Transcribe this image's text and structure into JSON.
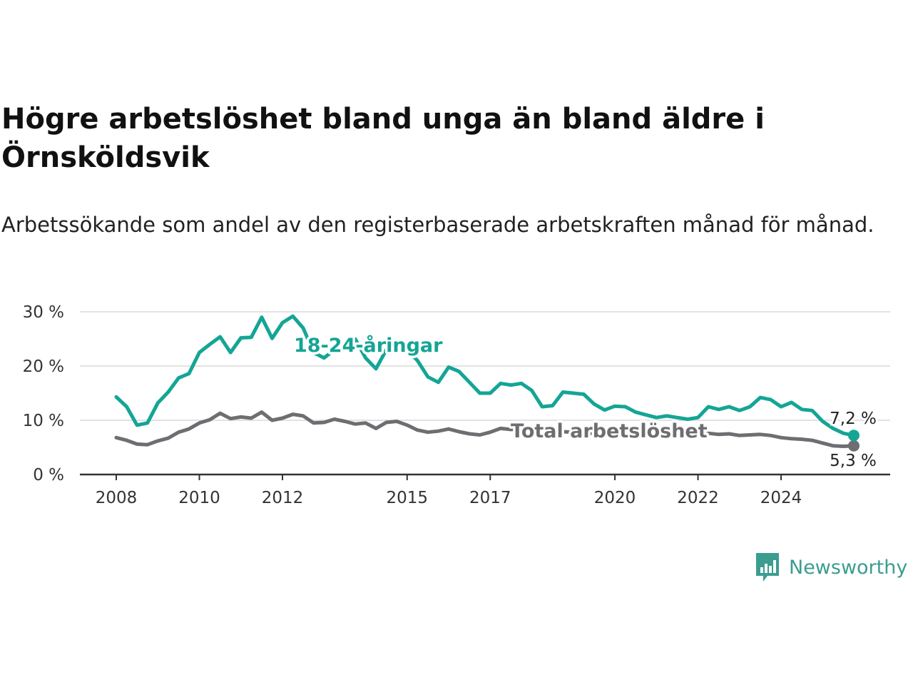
{
  "title": "Högre arbetslöshet bland unga än bland äldre i Örnsköldsvik",
  "subtitle": "Arbetssökande som andel av den registerbaserade arbetskraften månad för månad.",
  "brand": {
    "name": "Newsworthy",
    "icon": "newsworthy-logo-icon",
    "color": "#3a9d8f"
  },
  "chart_data": {
    "type": "line",
    "title": "Högre arbetslöshet bland unga än bland äldre i Örnsköldsvik",
    "subtitle": "Arbetssökande som andel av den registerbaserade arbetskraften månad för månad.",
    "xlabel": "",
    "ylabel": "",
    "x_range": [
      2008.0,
      2025.75
    ],
    "ylim": [
      0,
      30
    ],
    "y_ticks": [
      0,
      10,
      20,
      30
    ],
    "y_tick_labels": [
      "0 %",
      "10 %",
      "20 %",
      "30 %"
    ],
    "x_ticks": [
      2008,
      2010,
      2012,
      2015,
      2017,
      2020,
      2022,
      2024
    ],
    "x_tick_labels": [
      "2008",
      "2010",
      "2012",
      "2015",
      "2017",
      "2020",
      "2022",
      "2024"
    ],
    "grid": "horizontal",
    "legend": "inline labels",
    "series": [
      {
        "name": "18-24-åringar",
        "color": "#14a595",
        "end_label": "7,2 %",
        "points": [
          [
            2008.0,
            14.3
          ],
          [
            2008.25,
            12.5
          ],
          [
            2008.5,
            9.1
          ],
          [
            2008.75,
            9.5
          ],
          [
            2009.0,
            13.2
          ],
          [
            2009.25,
            15.2
          ],
          [
            2009.5,
            17.8
          ],
          [
            2009.75,
            18.6
          ],
          [
            2010.0,
            22.5
          ],
          [
            2010.25,
            24.0
          ],
          [
            2010.5,
            25.4
          ],
          [
            2010.75,
            22.5
          ],
          [
            2011.0,
            25.2
          ],
          [
            2011.25,
            25.3
          ],
          [
            2011.5,
            29.0
          ],
          [
            2011.75,
            25.1
          ],
          [
            2012.0,
            28.0
          ],
          [
            2012.25,
            29.2
          ],
          [
            2012.5,
            27.0
          ],
          [
            2012.75,
            22.5
          ],
          [
            2013.0,
            21.5
          ],
          [
            2013.25,
            23.0
          ],
          [
            2013.5,
            24.0
          ],
          [
            2013.75,
            25.0
          ],
          [
            2014.0,
            21.5
          ],
          [
            2014.25,
            19.5
          ],
          [
            2014.5,
            23.0
          ],
          [
            2014.75,
            24.5
          ],
          [
            2015.0,
            23.0
          ],
          [
            2015.25,
            21.0
          ],
          [
            2015.5,
            18.0
          ],
          [
            2015.75,
            17.0
          ],
          [
            2016.0,
            19.8
          ],
          [
            2016.25,
            19.0
          ],
          [
            2016.5,
            17.0
          ],
          [
            2016.75,
            15.0
          ],
          [
            2017.0,
            15.0
          ],
          [
            2017.25,
            16.8
          ],
          [
            2017.5,
            16.5
          ],
          [
            2017.75,
            16.8
          ],
          [
            2018.0,
            15.5
          ],
          [
            2018.25,
            12.5
          ],
          [
            2018.5,
            12.7
          ],
          [
            2018.75,
            15.2
          ],
          [
            2019.0,
            15.0
          ],
          [
            2019.25,
            14.8
          ],
          [
            2019.5,
            13.0
          ],
          [
            2019.75,
            11.9
          ],
          [
            2020.0,
            12.6
          ],
          [
            2020.25,
            12.5
          ],
          [
            2020.5,
            11.5
          ],
          [
            2020.75,
            11.0
          ],
          [
            2021.0,
            10.5
          ],
          [
            2021.25,
            10.8
          ],
          [
            2021.5,
            10.5
          ],
          [
            2021.75,
            10.2
          ],
          [
            2022.0,
            10.5
          ],
          [
            2022.25,
            12.5
          ],
          [
            2022.5,
            12.0
          ],
          [
            2022.75,
            12.5
          ],
          [
            2023.0,
            11.8
          ],
          [
            2023.25,
            12.5
          ],
          [
            2023.5,
            14.2
          ],
          [
            2023.75,
            13.8
          ],
          [
            2024.0,
            12.5
          ],
          [
            2024.25,
            13.3
          ],
          [
            2024.5,
            12.0
          ],
          [
            2024.75,
            11.8
          ],
          [
            2025.0,
            9.8
          ],
          [
            2025.25,
            8.5
          ],
          [
            2025.5,
            7.6
          ],
          [
            2025.75,
            7.2
          ]
        ]
      },
      {
        "name": "Total arbetslöshet",
        "color": "#6e6e72",
        "end_label": "5,3 %",
        "points": [
          [
            2008.0,
            6.8
          ],
          [
            2008.25,
            6.3
          ],
          [
            2008.5,
            5.6
          ],
          [
            2008.75,
            5.5
          ],
          [
            2009.0,
            6.2
          ],
          [
            2009.25,
            6.7
          ],
          [
            2009.5,
            7.8
          ],
          [
            2009.75,
            8.4
          ],
          [
            2010.0,
            9.5
          ],
          [
            2010.25,
            10.1
          ],
          [
            2010.5,
            11.3
          ],
          [
            2010.75,
            10.3
          ],
          [
            2011.0,
            10.6
          ],
          [
            2011.25,
            10.4
          ],
          [
            2011.5,
            11.5
          ],
          [
            2011.75,
            10.0
          ],
          [
            2012.0,
            10.4
          ],
          [
            2012.25,
            11.1
          ],
          [
            2012.5,
            10.8
          ],
          [
            2012.75,
            9.5
          ],
          [
            2013.0,
            9.6
          ],
          [
            2013.25,
            10.2
          ],
          [
            2013.5,
            9.8
          ],
          [
            2013.75,
            9.3
          ],
          [
            2014.0,
            9.5
          ],
          [
            2014.25,
            8.5
          ],
          [
            2014.5,
            9.6
          ],
          [
            2014.75,
            9.8
          ],
          [
            2015.0,
            9.1
          ],
          [
            2015.25,
            8.2
          ],
          [
            2015.5,
            7.8
          ],
          [
            2015.75,
            8.0
          ],
          [
            2016.0,
            8.4
          ],
          [
            2016.25,
            7.9
          ],
          [
            2016.5,
            7.5
          ],
          [
            2016.75,
            7.3
          ],
          [
            2017.0,
            7.8
          ],
          [
            2017.25,
            8.5
          ],
          [
            2017.5,
            8.3
          ],
          [
            2017.75,
            8.4
          ],
          [
            2018.0,
            8.2
          ],
          [
            2018.25,
            7.6
          ],
          [
            2018.5,
            7.5
          ],
          [
            2018.75,
            7.9
          ],
          [
            2019.0,
            7.8
          ],
          [
            2019.25,
            7.6
          ],
          [
            2019.5,
            7.6
          ],
          [
            2019.75,
            7.6
          ],
          [
            2020.0,
            7.6
          ],
          [
            2020.25,
            7.5
          ],
          [
            2020.5,
            7.4
          ],
          [
            2020.75,
            7.4
          ],
          [
            2021.0,
            7.4
          ],
          [
            2021.25,
            7.3
          ],
          [
            2021.5,
            7.3
          ],
          [
            2021.75,
            7.2
          ],
          [
            2022.0,
            7.0
          ],
          [
            2022.25,
            7.6
          ],
          [
            2022.5,
            7.4
          ],
          [
            2022.75,
            7.5
          ],
          [
            2023.0,
            7.2
          ],
          [
            2023.25,
            7.3
          ],
          [
            2023.5,
            7.4
          ],
          [
            2023.75,
            7.2
          ],
          [
            2024.0,
            6.8
          ],
          [
            2024.25,
            6.6
          ],
          [
            2024.5,
            6.5
          ],
          [
            2024.75,
            6.3
          ],
          [
            2025.0,
            5.8
          ],
          [
            2025.25,
            5.3
          ],
          [
            2025.5,
            5.2
          ],
          [
            2025.75,
            5.3
          ]
        ]
      }
    ]
  }
}
